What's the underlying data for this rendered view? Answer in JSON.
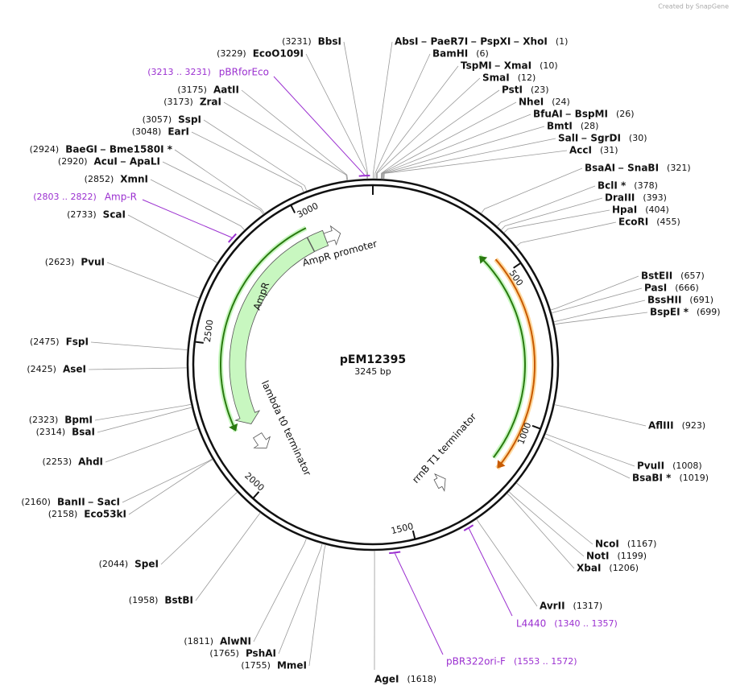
{
  "watermark": "Created by SnapGene",
  "plasmid": {
    "name": "pEM12395",
    "length": {
      "value": 3245,
      "label": "3245 bp"
    }
  },
  "ticks": [
    500,
    1000,
    1500,
    2000,
    2500,
    3000
  ],
  "features": [
    {
      "label": "AmpR promoter"
    },
    {
      "label": "AmpR"
    },
    {
      "label": "lambda t0 terminator"
    },
    {
      "label": "rrnB T1 terminator"
    }
  ],
  "enzymes": [
    {
      "names": [
        "AbsI",
        "PaeR7I",
        "PspXI",
        "XhoI"
      ],
      "site": {
        "value": 1,
        "label": "(1)"
      }
    },
    {
      "names": [
        "BamHI"
      ],
      "site": {
        "value": 6,
        "label": "(6)"
      }
    },
    {
      "names": [
        "TspMI",
        "XmaI"
      ],
      "site": {
        "value": 10,
        "label": "(10)"
      }
    },
    {
      "names": [
        "SmaI"
      ],
      "site": {
        "value": 12,
        "label": "(12)"
      }
    },
    {
      "names": [
        "PstI"
      ],
      "site": {
        "value": 23,
        "label": "(23)"
      }
    },
    {
      "names": [
        "NheI"
      ],
      "site": {
        "value": 24,
        "label": "(24)"
      }
    },
    {
      "names": [
        "BfuAI",
        "BspMI"
      ],
      "site": {
        "value": 26,
        "label": "(26)"
      }
    },
    {
      "names": [
        "BmtI"
      ],
      "site": {
        "value": 28,
        "label": "(28)"
      }
    },
    {
      "names": [
        "SalI",
        "SgrDI"
      ],
      "site": {
        "value": 30,
        "label": "(30)"
      }
    },
    {
      "names": [
        "AccI"
      ],
      "site": {
        "value": 31,
        "label": "(31)"
      }
    },
    {
      "names": [
        "BsaAI",
        "SnaBI"
      ],
      "site": {
        "value": 321,
        "label": "(321)"
      }
    },
    {
      "names": [
        "BclI *"
      ],
      "site": {
        "value": 378,
        "label": "(378)"
      }
    },
    {
      "names": [
        "DraIII"
      ],
      "site": {
        "value": 393,
        "label": "(393)"
      }
    },
    {
      "names": [
        "HpaI"
      ],
      "site": {
        "value": 404,
        "label": "(404)"
      }
    },
    {
      "names": [
        "EcoRI"
      ],
      "site": {
        "value": 455,
        "label": "(455)"
      }
    },
    {
      "names": [
        "BstEII"
      ],
      "site": {
        "value": 657,
        "label": "(657)"
      }
    },
    {
      "names": [
        "PasI"
      ],
      "site": {
        "value": 666,
        "label": "(666)"
      }
    },
    {
      "names": [
        "BssHII"
      ],
      "site": {
        "value": 691,
        "label": "(691)"
      }
    },
    {
      "names": [
        "BspEI *"
      ],
      "site": {
        "value": 699,
        "label": "(699)"
      }
    },
    {
      "names": [
        "AflIII"
      ],
      "site": {
        "value": 923,
        "label": "(923)"
      }
    },
    {
      "names": [
        "PvuII"
      ],
      "site": {
        "value": 1008,
        "label": "(1008)"
      }
    },
    {
      "names": [
        "BsaBI *"
      ],
      "site": {
        "value": 1019,
        "label": "(1019)"
      }
    },
    {
      "names": [
        "NcoI"
      ],
      "site": {
        "value": 1167,
        "label": "(1167)"
      }
    },
    {
      "names": [
        "NotI"
      ],
      "site": {
        "value": 1199,
        "label": "(1199)"
      }
    },
    {
      "names": [
        "XbaI"
      ],
      "site": {
        "value": 1206,
        "label": "(1206)"
      }
    },
    {
      "names": [
        "AvrII"
      ],
      "site": {
        "value": 1317,
        "label": "(1317)"
      }
    },
    {
      "names": [
        "AgeI"
      ],
      "site": {
        "value": 1618,
        "label": "(1618)"
      }
    },
    {
      "names": [
        "BbsI"
      ],
      "site": {
        "value": 3231,
        "label": "(3231)"
      }
    },
    {
      "names": [
        "EcoO109I"
      ],
      "site": {
        "value": 3229,
        "label": "(3229)"
      }
    },
    {
      "names": [
        "AatII"
      ],
      "site": {
        "value": 3175,
        "label": "(3175)"
      }
    },
    {
      "names": [
        "ZraI"
      ],
      "site": {
        "value": 3173,
        "label": "(3173)"
      }
    },
    {
      "names": [
        "SspI"
      ],
      "site": {
        "value": 3057,
        "label": "(3057)"
      }
    },
    {
      "names": [
        "EarI"
      ],
      "site": {
        "value": 3048,
        "label": "(3048)"
      }
    },
    {
      "names": [
        "BaeGI",
        "Bme1580I *"
      ],
      "site": {
        "value": 2924,
        "label": "(2924)"
      }
    },
    {
      "names": [
        "AcuI",
        "ApaLI"
      ],
      "site": {
        "value": 2920,
        "label": "(2920)"
      }
    },
    {
      "names": [
        "XmnI"
      ],
      "site": {
        "value": 2852,
        "label": "(2852)"
      }
    },
    {
      "names": [
        "ScaI"
      ],
      "site": {
        "value": 2733,
        "label": "(2733)"
      }
    },
    {
      "names": [
        "PvuI"
      ],
      "site": {
        "value": 2623,
        "label": "(2623)"
      }
    },
    {
      "names": [
        "FspI"
      ],
      "site": {
        "value": 2475,
        "label": "(2475)"
      }
    },
    {
      "names": [
        "AseI"
      ],
      "site": {
        "value": 2425,
        "label": "(2425)"
      }
    },
    {
      "names": [
        "BpmI"
      ],
      "site": {
        "value": 2323,
        "label": "(2323)"
      }
    },
    {
      "names": [
        "BsaI"
      ],
      "site": {
        "value": 2314,
        "label": "(2314)"
      }
    },
    {
      "names": [
        "AhdI"
      ],
      "site": {
        "value": 2253,
        "label": "(2253)"
      }
    },
    {
      "names": [
        "BanII",
        "SacI"
      ],
      "site": {
        "value": 2160,
        "label": "(2160)"
      }
    },
    {
      "names": [
        "Eco53kI"
      ],
      "site": {
        "value": 2158,
        "label": "(2158)"
      }
    },
    {
      "names": [
        "SpeI"
      ],
      "site": {
        "value": 2044,
        "label": "(2044)"
      }
    },
    {
      "names": [
        "BstBI"
      ],
      "site": {
        "value": 1958,
        "label": "(1958)"
      }
    },
    {
      "names": [
        "AlwNI"
      ],
      "site": {
        "value": 1811,
        "label": "(1811)"
      }
    },
    {
      "names": [
        "PshAI"
      ],
      "site": {
        "value": 1765,
        "label": "(1765)"
      }
    },
    {
      "names": [
        "MmeI"
      ],
      "site": {
        "value": 1755,
        "label": "(1755)"
      }
    }
  ],
  "primers": [
    {
      "name": "pBRforEco",
      "range": {
        "start": 3213,
        "end": 3231,
        "label": "(3213 .. 3231)"
      }
    },
    {
      "name": "Amp-R",
      "range": {
        "start": 2803,
        "end": 2822,
        "label": "(2803 .. 2822)"
      }
    },
    {
      "name": "L4440",
      "range": {
        "start": 1340,
        "end": 1357,
        "label": "(1340 .. 1357)"
      }
    },
    {
      "name": "pBR322ori-F",
      "range": {
        "start": 1553,
        "end": 1572,
        "label": "(1553 .. 1572)"
      }
    }
  ]
}
